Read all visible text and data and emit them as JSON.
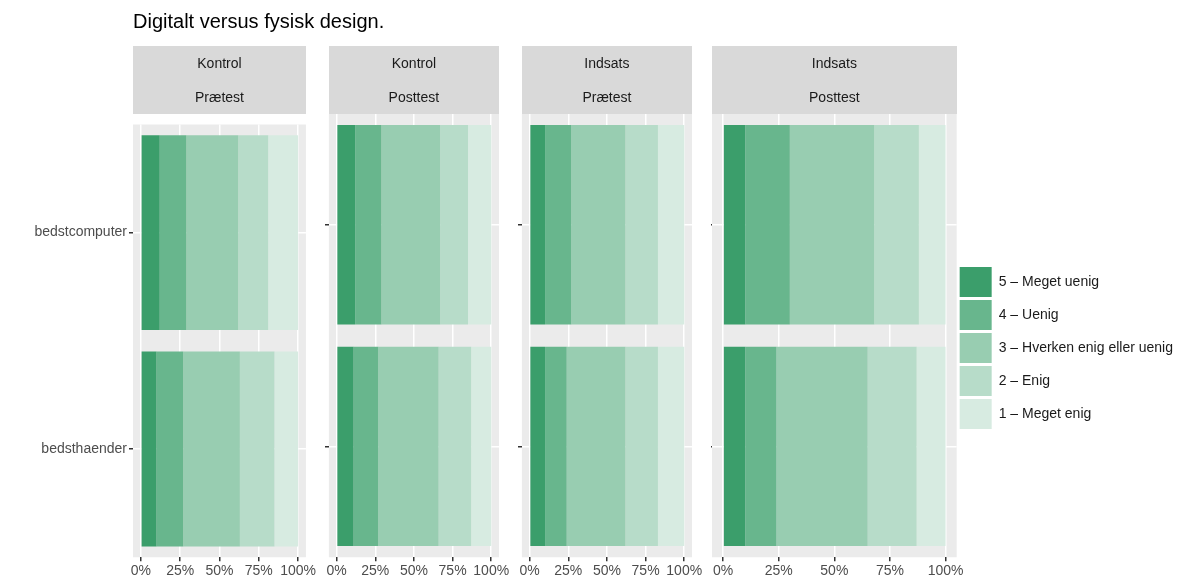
{
  "chart_data": [
    {
      "type": "bar",
      "orientation": "horizontal",
      "stacked": true,
      "title": "Kontrol",
      "subtitle": "Prætest",
      "annotations": [
        "Digitalt versus fysisk design."
      ],
      "categories": [
        "bedstcomputer",
        "bedsthaender"
      ],
      "series": [
        {
          "color": "#3b9e6b",
          "values": [
            12,
            10
          ]
        },
        {
          "color": "#68b68d",
          "values": [
            17,
            17
          ]
        },
        {
          "color": "#98cdb1",
          "values": [
            33,
            36
          ]
        },
        {
          "color": "#b7dcc9",
          "values": [
            19,
            22
          ]
        },
        {
          "color": "#d7ebe1",
          "values": [
            19,
            15
          ]
        }
      ],
      "xlim": [
        -5,
        105
      ],
      "xticks": [
        {
          "value": 0,
          "label": "0%"
        },
        {
          "value": 25,
          "label": "25%"
        },
        {
          "value": 50,
          "label": "50%"
        },
        {
          "value": 75,
          "label": "75%"
        },
        {
          "value": 100,
          "label": "100%"
        }
      ],
      "grid": true
    },
    {
      "type": "bar",
      "orientation": "horizontal",
      "stacked": true,
      "title": "Kontrol",
      "subtitle": "Posttest",
      "categories": [
        null,
        null
      ],
      "series": [
        {
          "color": "#3b9e6b",
          "values": [
            12,
            11
          ]
        },
        {
          "color": "#68b68d",
          "values": [
            17,
            16
          ]
        },
        {
          "color": "#98cdb1",
          "values": [
            38,
            39
          ]
        },
        {
          "color": "#b7dcc9",
          "values": [
            18,
            21
          ]
        },
        {
          "color": "#d7ebe1",
          "values": [
            15,
            13
          ]
        }
      ],
      "xlim": [
        -5,
        105
      ],
      "xticks": [
        {
          "value": 0,
          "label": "0%"
        },
        {
          "value": 25,
          "label": "25%"
        },
        {
          "value": 50,
          "label": "50%"
        },
        {
          "value": 75,
          "label": "75%"
        },
        {
          "value": 100,
          "label": "100%"
        }
      ],
      "grid": true,
      "tick_labels": "x"
    },
    {
      "type": "bar",
      "orientation": "horizontal",
      "stacked": true,
      "title": "Indsats",
      "subtitle": "Prætest",
      "categories": [
        null,
        null
      ],
      "series": [
        {
          "color": "#3b9e6b",
          "values": [
            10,
            10
          ]
        },
        {
          "color": "#68b68d",
          "values": [
            17,
            14
          ]
        },
        {
          "color": "#98cdb1",
          "values": [
            35,
            38
          ]
        },
        {
          "color": "#b7dcc9",
          "values": [
            21,
            21
          ]
        },
        {
          "color": "#d7ebe1",
          "values": [
            17,
            17
          ]
        }
      ],
      "xlim": [
        -5,
        105
      ],
      "xticks": [
        {
          "value": 0,
          "label": "0%"
        },
        {
          "value": 25,
          "label": "25%"
        },
        {
          "value": 50,
          "label": "50%"
        },
        {
          "value": 75,
          "label": "75%"
        },
        {
          "value": 100,
          "label": "100%"
        }
      ],
      "grid": true,
      "tick_labels": "x"
    },
    {
      "type": "bar",
      "orientation": "horizontal",
      "stacked": true,
      "title": "Indsats",
      "subtitle": "Posttest",
      "categories": [
        null,
        null
      ],
      "series": [
        {
          "name": "5 – Meget uenig",
          "color": "#3b9e6b",
          "values": [
            10,
            10
          ]
        },
        {
          "name": "4 – Uenig",
          "color": "#68b68d",
          "values": [
            20,
            14
          ]
        },
        {
          "name": "3 – Hverken enig eller uenig",
          "color": "#98cdb1",
          "values": [
            38,
            41
          ]
        },
        {
          "name": "2 – Enig",
          "color": "#b7dcc9",
          "values": [
            20,
            22
          ]
        },
        {
          "name": "1 – Meget enig",
          "color": "#d7ebe1",
          "values": [
            12,
            13
          ]
        }
      ],
      "xlim": [
        -5,
        105
      ],
      "xticks": [
        {
          "value": 0,
          "label": "0%"
        },
        {
          "value": 25,
          "label": "25%"
        },
        {
          "value": 50,
          "label": "50%"
        },
        {
          "value": 75,
          "label": "75%"
        },
        {
          "value": 100,
          "label": "100%"
        }
      ],
      "grid": true,
      "tick_labels": "x",
      "legend": "right"
    }
  ]
}
